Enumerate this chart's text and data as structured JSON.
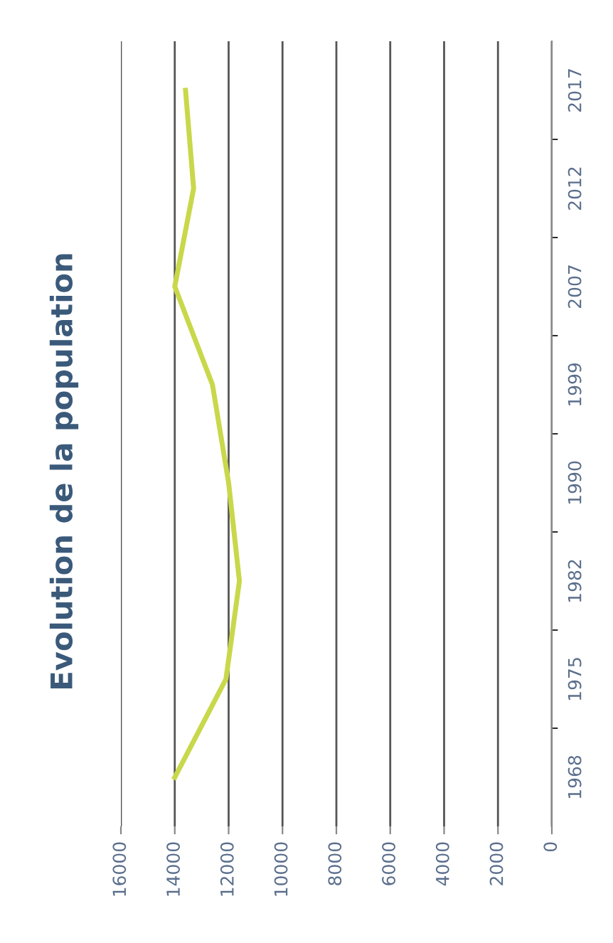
{
  "chart_data": {
    "type": "line",
    "title": "Evolution de la population",
    "orientation": "horizontal",
    "categories": [
      "2017",
      "2012",
      "2007",
      "1999",
      "1990",
      "1982",
      "1975",
      "1968"
    ],
    "series": [
      {
        "color": "#c8d84a",
        "values": [
          13600,
          13300,
          14000,
          12600,
          12000,
          11600,
          12100,
          14000
        ]
      }
    ],
    "xlim": [
      16000,
      0
    ],
    "xticks": [
      16000,
      14000,
      12000,
      10000,
      8000,
      6000,
      4000,
      2000,
      0
    ],
    "grid": "x",
    "legend": false,
    "marker": "none",
    "line_style": "solid"
  }
}
